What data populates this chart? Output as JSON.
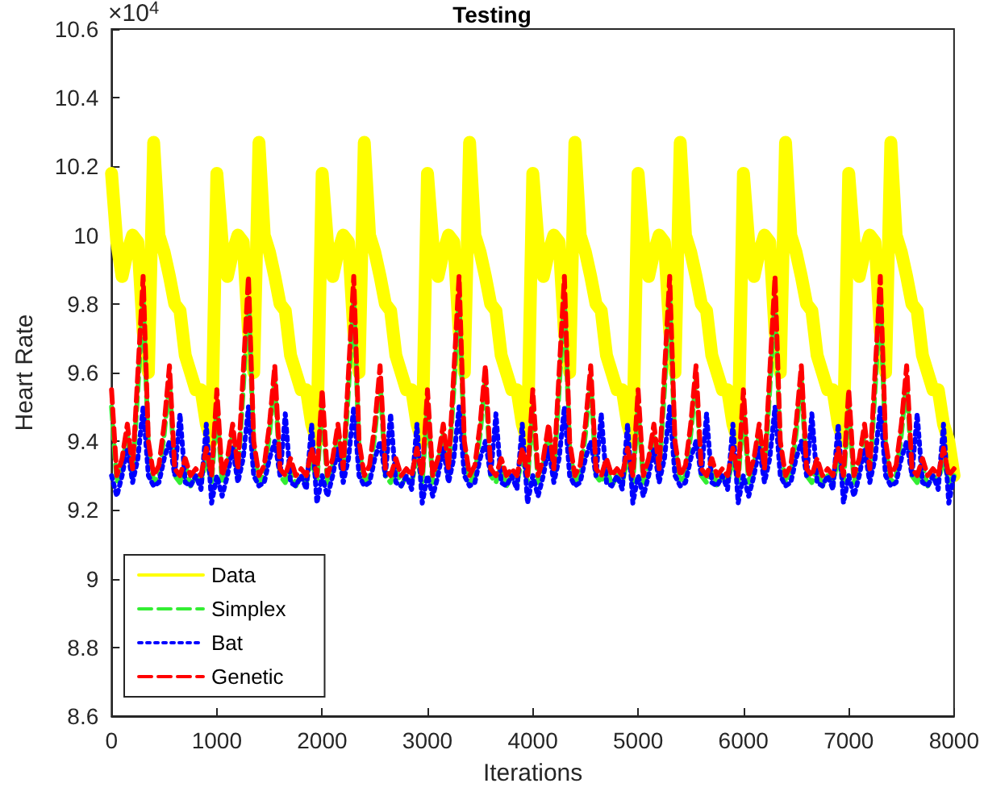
{
  "chart_data": {
    "type": "line",
    "title": "Testing",
    "xlabel": "Iterations",
    "ylabel": "Heart Rate",
    "annotations": [
      "×10$^{4}$"
    ],
    "x": [
      0,
      50,
      100,
      150,
      200,
      250,
      300,
      350,
      400,
      450,
      500,
      550,
      600,
      650,
      700,
      750,
      800,
      850,
      900,
      950,
      1000,
      1050,
      1100,
      1150,
      1200,
      1250,
      1300,
      1350,
      1400,
      1450,
      1500,
      1550,
      1600,
      1650,
      1700,
      1750,
      1800,
      1850,
      1900,
      1950,
      2000,
      2050,
      2100,
      2150,
      2200,
      2250,
      2300,
      2350,
      2400,
      2450,
      2500,
      2550,
      2600,
      2650,
      2700,
      2750,
      2800,
      2850,
      2900,
      2950,
      3000,
      3050,
      3100,
      3150,
      3200,
      3250,
      3300,
      3350,
      3400,
      3450,
      3500,
      3550,
      3600,
      3650,
      3700,
      3750,
      3800,
      3850,
      3900,
      3950,
      4000,
      4050,
      4100,
      4150,
      4200,
      4250,
      4300,
      4350,
      4400,
      4450,
      4500,
      4550,
      4600,
      4650,
      4700,
      4750,
      4800,
      4850,
      4900,
      4950,
      5000,
      5050,
      5100,
      5150,
      5200,
      5250,
      5300,
      5350,
      5400,
      5450,
      5500,
      5550,
      5600,
      5650,
      5700,
      5750,
      5800,
      5850,
      5900,
      5950,
      6000,
      6050,
      6100,
      6150,
      6200,
      6250,
      6300,
      6350,
      6400,
      6450,
      6500,
      6550,
      6600,
      6650,
      6700,
      6750,
      6800,
      6850,
      6900,
      6950,
      7000,
      7050,
      7100,
      7150,
      7200,
      7250,
      7300,
      7350,
      7400,
      7450,
      7500,
      7550,
      7600,
      7650,
      7700,
      7750,
      7800,
      7850,
      7900,
      7950,
      8000
    ],
    "series": [
      {
        "name": "Data",
        "color": "#ffff00",
        "line_style": "solid",
        "values": [
          10.18,
          9.98,
          9.88,
          9.95,
          10.0,
          9.98,
          9.72,
          9.6,
          10.27,
          10.0,
          9.95,
          9.88,
          9.8,
          9.78,
          9.65,
          9.6,
          9.55,
          9.55,
          9.45,
          9.4,
          10.18,
          9.98,
          9.88,
          9.95,
          10.0,
          9.98,
          9.72,
          9.6,
          10.27,
          10.0,
          9.95,
          9.88,
          9.8,
          9.78,
          9.65,
          9.6,
          9.55,
          9.55,
          9.45,
          9.4,
          10.18,
          9.98,
          9.88,
          9.95,
          10.0,
          9.98,
          9.72,
          9.6,
          10.27,
          10.0,
          9.95,
          9.88,
          9.8,
          9.78,
          9.65,
          9.6,
          9.55,
          9.55,
          9.45,
          9.4,
          10.18,
          9.98,
          9.88,
          9.95,
          10.0,
          9.98,
          9.72,
          9.6,
          10.27,
          10.0,
          9.95,
          9.88,
          9.8,
          9.78,
          9.65,
          9.6,
          9.55,
          9.55,
          9.45,
          9.4,
          10.18,
          9.98,
          9.88,
          9.95,
          10.0,
          9.98,
          9.72,
          9.6,
          10.27,
          10.0,
          9.95,
          9.88,
          9.8,
          9.78,
          9.65,
          9.6,
          9.55,
          9.55,
          9.45,
          9.4,
          10.18,
          9.98,
          9.88,
          9.95,
          10.0,
          9.98,
          9.72,
          9.6,
          10.27,
          10.0,
          9.95,
          9.88,
          9.8,
          9.78,
          9.65,
          9.6,
          9.55,
          9.55,
          9.45,
          9.4,
          10.18,
          9.98,
          9.88,
          9.95,
          10.0,
          9.98,
          9.72,
          9.6,
          10.27,
          10.0,
          9.95,
          9.88,
          9.8,
          9.78,
          9.65,
          9.6,
          9.55,
          9.55,
          9.45,
          9.4,
          10.18,
          9.98,
          9.88,
          9.95,
          10.0,
          9.98,
          9.72,
          9.6,
          10.27,
          10.0,
          9.95,
          9.88,
          9.8,
          9.78,
          9.65,
          9.6,
          9.55,
          9.55,
          9.45,
          9.4,
          9.3
        ]
      },
      {
        "name": "Simplex",
        "color": "#33ee33",
        "line_style": "dashed",
        "values": [
          9.5,
          9.28,
          9.33,
          9.42,
          9.3,
          9.55,
          9.82,
          9.38,
          9.28,
          9.3,
          9.42,
          9.58,
          9.3,
          9.28,
          9.33,
          9.27,
          9.3,
          9.28,
          9.35,
          9.28,
          9.5,
          9.28,
          9.33,
          9.42,
          9.3,
          9.55,
          9.82,
          9.38,
          9.28,
          9.3,
          9.42,
          9.58,
          9.3,
          9.28,
          9.33,
          9.27,
          9.3,
          9.28,
          9.35,
          9.28,
          9.5,
          9.28,
          9.33,
          9.42,
          9.3,
          9.55,
          9.82,
          9.38,
          9.28,
          9.3,
          9.42,
          9.58,
          9.3,
          9.28,
          9.33,
          9.27,
          9.3,
          9.28,
          9.35,
          9.28,
          9.5,
          9.28,
          9.33,
          9.42,
          9.3,
          9.55,
          9.82,
          9.38,
          9.28,
          9.3,
          9.42,
          9.58,
          9.3,
          9.28,
          9.33,
          9.27,
          9.3,
          9.28,
          9.35,
          9.28,
          9.5,
          9.28,
          9.33,
          9.42,
          9.3,
          9.55,
          9.82,
          9.38,
          9.28,
          9.3,
          9.42,
          9.58,
          9.3,
          9.28,
          9.33,
          9.27,
          9.3,
          9.28,
          9.35,
          9.28,
          9.5,
          9.28,
          9.33,
          9.42,
          9.3,
          9.55,
          9.82,
          9.38,
          9.28,
          9.3,
          9.42,
          9.58,
          9.3,
          9.28,
          9.33,
          9.27,
          9.3,
          9.28,
          9.35,
          9.28,
          9.5,
          9.28,
          9.33,
          9.42,
          9.3,
          9.55,
          9.82,
          9.38,
          9.28,
          9.3,
          9.42,
          9.58,
          9.3,
          9.28,
          9.33,
          9.27,
          9.3,
          9.28,
          9.35,
          9.28,
          9.5,
          9.28,
          9.33,
          9.42,
          9.3,
          9.55,
          9.82,
          9.38,
          9.28,
          9.3,
          9.42,
          9.58,
          9.3,
          9.28,
          9.33,
          9.27,
          9.3,
          9.28,
          9.35,
          9.28,
          9.3
        ]
      },
      {
        "name": "Bat",
        "color": "#0000ff",
        "line_style": "dotted",
        "values": [
          9.3,
          9.24,
          9.3,
          9.38,
          9.28,
          9.35,
          9.5,
          9.3,
          9.27,
          9.28,
          9.35,
          9.4,
          9.3,
          9.48,
          9.28,
          9.27,
          9.3,
          9.26,
          9.45,
          9.22,
          9.3,
          9.24,
          9.3,
          9.38,
          9.28,
          9.35,
          9.5,
          9.3,
          9.27,
          9.28,
          9.35,
          9.4,
          9.3,
          9.48,
          9.28,
          9.27,
          9.3,
          9.26,
          9.45,
          9.22,
          9.3,
          9.24,
          9.3,
          9.38,
          9.28,
          9.35,
          9.5,
          9.3,
          9.27,
          9.28,
          9.35,
          9.4,
          9.3,
          9.48,
          9.28,
          9.27,
          9.3,
          9.26,
          9.45,
          9.22,
          9.3,
          9.24,
          9.3,
          9.38,
          9.28,
          9.35,
          9.5,
          9.3,
          9.27,
          9.28,
          9.35,
          9.4,
          9.3,
          9.48,
          9.28,
          9.27,
          9.3,
          9.26,
          9.45,
          9.22,
          9.3,
          9.24,
          9.3,
          9.38,
          9.28,
          9.35,
          9.5,
          9.3,
          9.27,
          9.28,
          9.35,
          9.4,
          9.3,
          9.48,
          9.28,
          9.27,
          9.3,
          9.26,
          9.45,
          9.22,
          9.3,
          9.24,
          9.3,
          9.38,
          9.28,
          9.35,
          9.5,
          9.3,
          9.27,
          9.28,
          9.35,
          9.4,
          9.3,
          9.48,
          9.28,
          9.27,
          9.3,
          9.26,
          9.45,
          9.22,
          9.3,
          9.24,
          9.3,
          9.38,
          9.28,
          9.35,
          9.5,
          9.3,
          9.27,
          9.28,
          9.35,
          9.4,
          9.3,
          9.48,
          9.28,
          9.27,
          9.3,
          9.26,
          9.45,
          9.22,
          9.3,
          9.24,
          9.3,
          9.38,
          9.28,
          9.35,
          9.5,
          9.3,
          9.27,
          9.28,
          9.35,
          9.4,
          9.3,
          9.48,
          9.28,
          9.27,
          9.3,
          9.26,
          9.45,
          9.22,
          9.3
        ]
      },
      {
        "name": "Genetic",
        "color": "#ff0000",
        "line_style": "dashed",
        "values": [
          9.55,
          9.3,
          9.35,
          9.45,
          9.32,
          9.6,
          9.88,
          9.4,
          9.3,
          9.33,
          9.45,
          9.62,
          9.32,
          9.3,
          9.35,
          9.3,
          9.32,
          9.3,
          9.38,
          9.3,
          9.55,
          9.3,
          9.35,
          9.45,
          9.32,
          9.6,
          9.88,
          9.4,
          9.3,
          9.33,
          9.45,
          9.62,
          9.32,
          9.3,
          9.35,
          9.3,
          9.32,
          9.3,
          9.38,
          9.3,
          9.55,
          9.3,
          9.35,
          9.45,
          9.32,
          9.6,
          9.88,
          9.4,
          9.3,
          9.33,
          9.45,
          9.62,
          9.32,
          9.3,
          9.35,
          9.3,
          9.32,
          9.3,
          9.38,
          9.3,
          9.55,
          9.3,
          9.35,
          9.45,
          9.32,
          9.6,
          9.88,
          9.4,
          9.3,
          9.33,
          9.45,
          9.62,
          9.32,
          9.3,
          9.35,
          9.3,
          9.32,
          9.3,
          9.38,
          9.3,
          9.55,
          9.3,
          9.35,
          9.45,
          9.32,
          9.6,
          9.88,
          9.4,
          9.3,
          9.33,
          9.45,
          9.62,
          9.32,
          9.3,
          9.35,
          9.3,
          9.32,
          9.3,
          9.38,
          9.3,
          9.55,
          9.3,
          9.35,
          9.45,
          9.32,
          9.6,
          9.88,
          9.4,
          9.3,
          9.33,
          9.45,
          9.62,
          9.32,
          9.3,
          9.35,
          9.3,
          9.32,
          9.3,
          9.38,
          9.3,
          9.55,
          9.3,
          9.35,
          9.45,
          9.32,
          9.6,
          9.88,
          9.4,
          9.3,
          9.33,
          9.45,
          9.62,
          9.32,
          9.3,
          9.35,
          9.3,
          9.32,
          9.3,
          9.38,
          9.3,
          9.55,
          9.3,
          9.35,
          9.45,
          9.32,
          9.6,
          9.88,
          9.4,
          9.3,
          9.33,
          9.45,
          9.62,
          9.32,
          9.3,
          9.35,
          9.3,
          9.32,
          9.3,
          9.38,
          9.3,
          9.32
        ]
      }
    ],
    "xlim": [
      0,
      8000
    ],
    "xticks": [
      0,
      1000,
      2000,
      3000,
      4000,
      5000,
      6000,
      7000,
      8000
    ],
    "ylim": [
      8.6,
      10.6
    ],
    "yticks": [
      8.6,
      8.8,
      9,
      9.2,
      9.4,
      9.6,
      9.8,
      10,
      10.2,
      10.4,
      10.6
    ],
    "grid": false,
    "legend": "bottom left",
    "marker": "none"
  }
}
